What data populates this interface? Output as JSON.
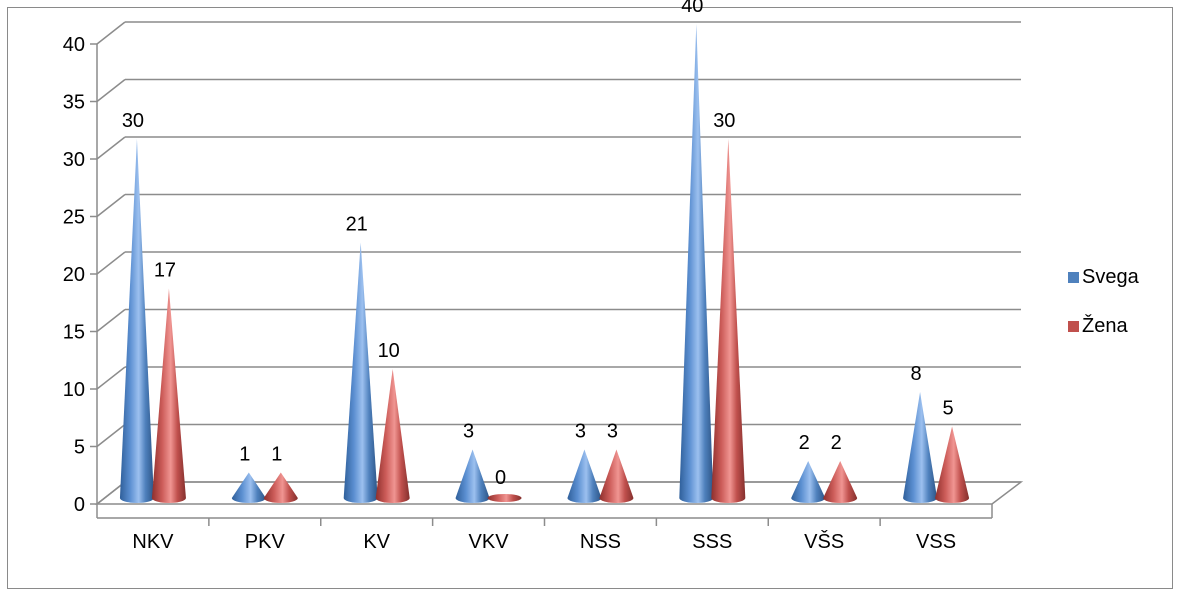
{
  "chart_data": {
    "type": "bar",
    "style": "3d-cone",
    "categories": [
      "NKV",
      "PKV",
      "KV",
      "VKV",
      "NSS",
      "SSS",
      "VŠS",
      "VSS"
    ],
    "series": [
      {
        "name": "Svega",
        "values": [
          30,
          1,
          21,
          3,
          3,
          40,
          2,
          8
        ],
        "color": "#4F81BD"
      },
      {
        "name": "Žena",
        "values": [
          17,
          1,
          10,
          0,
          3,
          30,
          2,
          5
        ],
        "color": "#C0504D"
      }
    ],
    "title": "",
    "xlabel": "",
    "ylabel": "",
    "ylim": [
      0,
      40
    ],
    "yticks": [
      0,
      5,
      10,
      15,
      20,
      25,
      30,
      35,
      40
    ],
    "grid": true,
    "legend_position": "right",
    "data_labels": true
  }
}
